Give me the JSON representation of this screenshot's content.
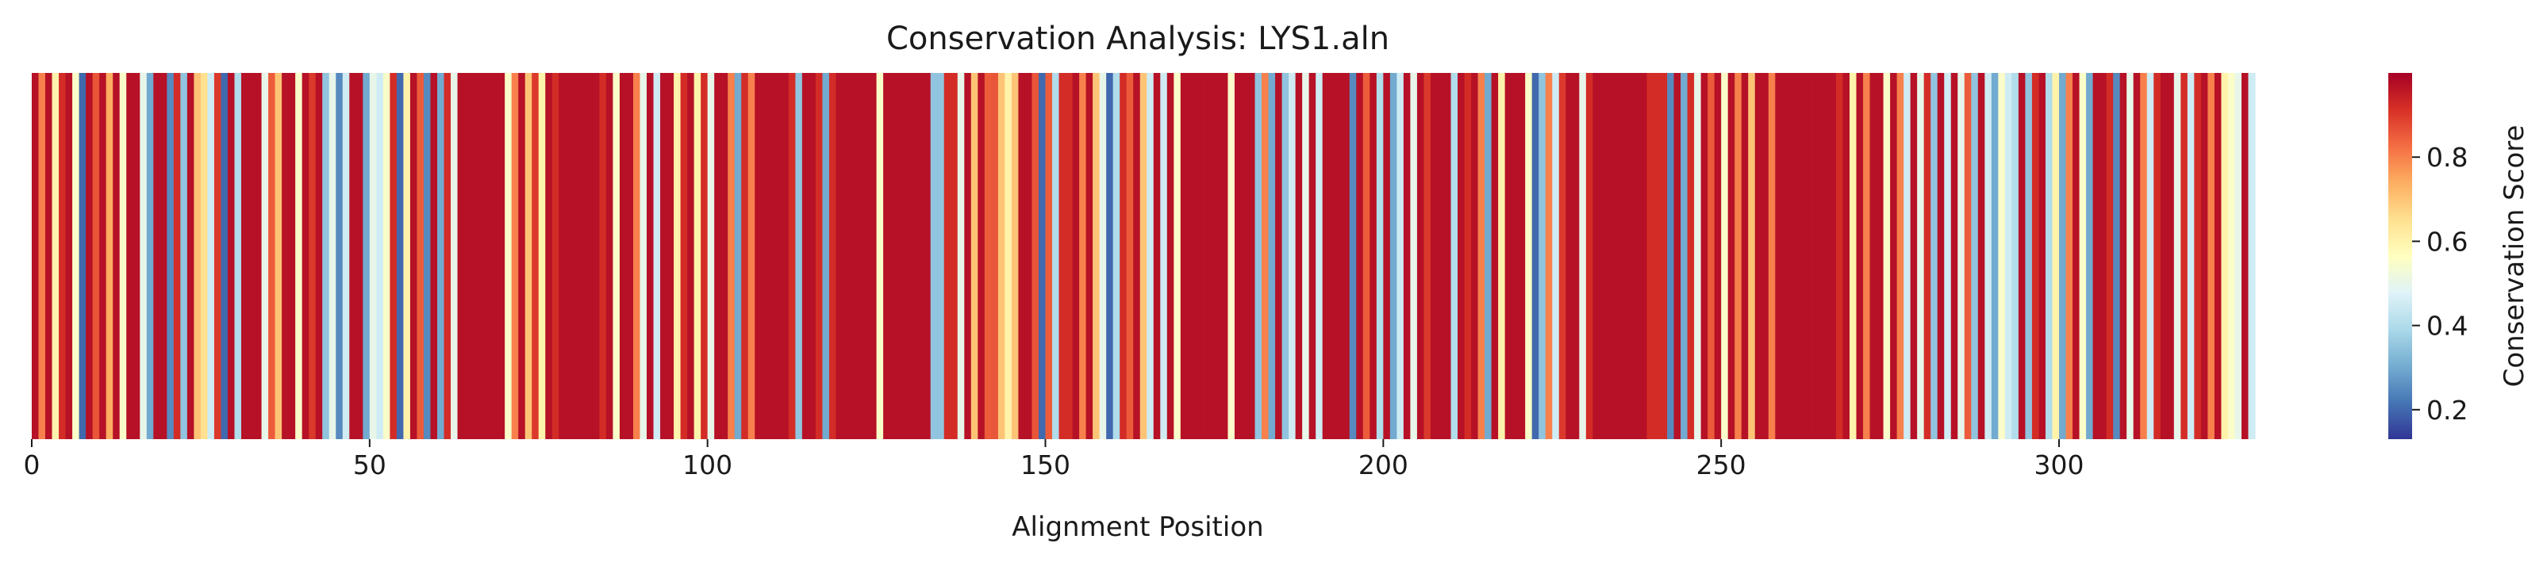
{
  "chart_data": {
    "type": "heatmap",
    "title": "Conservation Analysis: LYS1.aln",
    "xlabel": "Alignment Position",
    "ylabel": "",
    "xlim": [
      0,
      329
    ],
    "x_ticks": [
      0,
      50,
      100,
      150,
      200,
      250,
      300
    ],
    "colormap": "RdYlBu_r",
    "colorbar": {
      "label": "Conservation Score",
      "range": [
        0.13,
        1.0
      ],
      "ticks": [
        0.2,
        0.4,
        0.6,
        0.8
      ],
      "tick_labels": [
        "0.2",
        "0.4",
        "0.6",
        "0.8"
      ]
    },
    "values": [
      0.97,
      0.8,
      0.97,
      0.6,
      0.92,
      0.97,
      0.55,
      0.2,
      0.97,
      0.86,
      0.97,
      0.74,
      0.97,
      0.55,
      0.97,
      0.97,
      0.5,
      0.3,
      0.97,
      0.97,
      0.25,
      0.92,
      0.35,
      0.97,
      0.7,
      0.65,
      0.45,
      0.9,
      0.2,
      0.97,
      0.4,
      0.97,
      0.97,
      0.97,
      0.5,
      0.85,
      0.7,
      0.97,
      0.97,
      0.55,
      0.97,
      0.9,
      0.97,
      0.35,
      0.5,
      0.25,
      0.45,
      0.97,
      0.97,
      0.3,
      0.5,
      0.45,
      0.55,
      0.92,
      0.2,
      0.6,
      0.97,
      0.85,
      0.25,
      0.97,
      0.3,
      0.92,
      0.5,
      0.97,
      0.97,
      0.97,
      0.97,
      0.97,
      0.97,
      0.97,
      0.55,
      0.8,
      0.97,
      0.7,
      0.9,
      0.6,
      0.97,
      0.92,
      0.97,
      0.97,
      0.97,
      0.97,
      0.97,
      0.97,
      0.92,
      0.97,
      0.55,
      0.97,
      0.97,
      0.8,
      0.5,
      0.97,
      0.45,
      0.97,
      0.97,
      0.6,
      0.92,
      0.97,
      0.6,
      0.92,
      0.5,
      0.97,
      0.97,
      0.8,
      0.3,
      0.92,
      0.8,
      0.97,
      0.97,
      0.97,
      0.97,
      0.97,
      0.92,
      0.35,
      0.97,
      0.97,
      0.92,
      0.3,
      0.92,
      0.97,
      0.97,
      0.97,
      0.97,
      0.97,
      0.97,
      0.55,
      0.97,
      0.97,
      0.97,
      0.97,
      0.97,
      0.97,
      0.97,
      0.35,
      0.35,
      0.92,
      0.92,
      0.5,
      0.97,
      0.7,
      0.97,
      0.85,
      0.86,
      0.7,
      0.6,
      0.7,
      0.97,
      0.97,
      0.86,
      0.2,
      0.85,
      0.4,
      0.92,
      0.92,
      0.97,
      0.8,
      0.97,
      0.7,
      0.5,
      0.2,
      0.4,
      0.92,
      0.85,
      0.97,
      0.7,
      0.45,
      0.97,
      0.45,
      0.97,
      0.55,
      0.97,
      0.97,
      0.97,
      0.97,
      0.97,
      0.97,
      0.97,
      0.55,
      0.97,
      0.97,
      0.97,
      0.35,
      0.8,
      0.3,
      0.97,
      0.35,
      0.45,
      0.97,
      0.5,
      0.97,
      0.45,
      0.97,
      0.97,
      0.97,
      0.97,
      0.25,
      0.97,
      0.85,
      0.97,
      0.4,
      0.97,
      0.3,
      0.45,
      0.97,
      0.5,
      0.97,
      0.9,
      0.97,
      0.97,
      0.97,
      0.4,
      0.97,
      0.92,
      0.97,
      0.8,
      0.3,
      0.97,
      0.6,
      0.97,
      0.97,
      0.97,
      0.55,
      0.2,
      0.35,
      0.8,
      0.45,
      0.9,
      0.97,
      0.97,
      0.5,
      0.92,
      0.97,
      0.97,
      0.97,
      0.97,
      0.97,
      0.97,
      0.97,
      0.97,
      0.92,
      0.92,
      0.92,
      0.25,
      0.97,
      0.3,
      0.92,
      0.5,
      0.97,
      0.85,
      0.97,
      0.55,
      0.97,
      0.8,
      0.97,
      0.7,
      0.97,
      0.97,
      0.8,
      0.97,
      0.97,
      0.97,
      0.97,
      0.97,
      0.97,
      0.97,
      0.97,
      0.97,
      0.92,
      0.97,
      0.6,
      0.97,
      0.8,
      0.97,
      0.97,
      0.55,
      0.97,
      0.8,
      0.45,
      0.97,
      0.5,
      0.92,
      0.35,
      0.97,
      0.45,
      0.97,
      0.5,
      0.85,
      0.35,
      0.97,
      0.45,
      0.3,
      0.55,
      0.45,
      0.4,
      0.97,
      0.35,
      0.92,
      0.97,
      0.4,
      0.6,
      0.3,
      0.8,
      0.97,
      0.55,
      0.3,
      0.97,
      0.97,
      0.92,
      0.25,
      0.97,
      0.5,
      0.97,
      0.8,
      0.45,
      0.92,
      0.97,
      0.97,
      0.5,
      0.92,
      0.45,
      0.92,
      0.97,
      0.8,
      0.97,
      0.6,
      0.55,
      0.5,
      0.97,
      0.45
    ]
  }
}
